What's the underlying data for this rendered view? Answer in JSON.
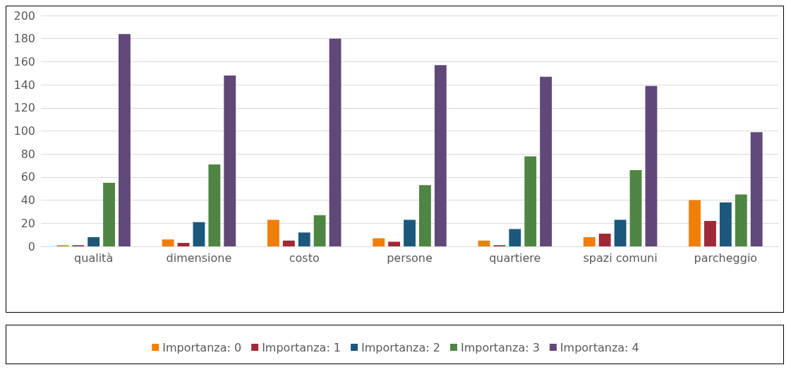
{
  "chart_data": {
    "type": "bar",
    "categories": [
      "qualità",
      "dimensione",
      "costo",
      "persone",
      "quartiere",
      "spazi comuni",
      "parcheggio"
    ],
    "series": [
      {
        "name": "Importanza: 0",
        "color": "#f07f09",
        "values": [
          1,
          6,
          23,
          7,
          5,
          8,
          40
        ]
      },
      {
        "name": "Importanza: 1",
        "color": "#9f2936",
        "values": [
          1,
          3,
          5,
          4,
          1,
          11,
          22
        ]
      },
      {
        "name": "Importanza: 2",
        "color": "#1b587c",
        "values": [
          8,
          21,
          12,
          23,
          15,
          23,
          38
        ]
      },
      {
        "name": "Importanza: 3",
        "color": "#4e8542",
        "values": [
          55,
          71,
          27,
          53,
          78,
          66,
          45
        ]
      },
      {
        "name": "Importanza: 4",
        "color": "#604878",
        "values": [
          184,
          148,
          180,
          157,
          147,
          139,
          99
        ]
      }
    ],
    "ylim": [
      0,
      200
    ],
    "yticks": [
      0,
      20,
      40,
      60,
      80,
      100,
      120,
      140,
      160,
      180,
      200
    ],
    "grid": "y",
    "legend": "bottom"
  }
}
